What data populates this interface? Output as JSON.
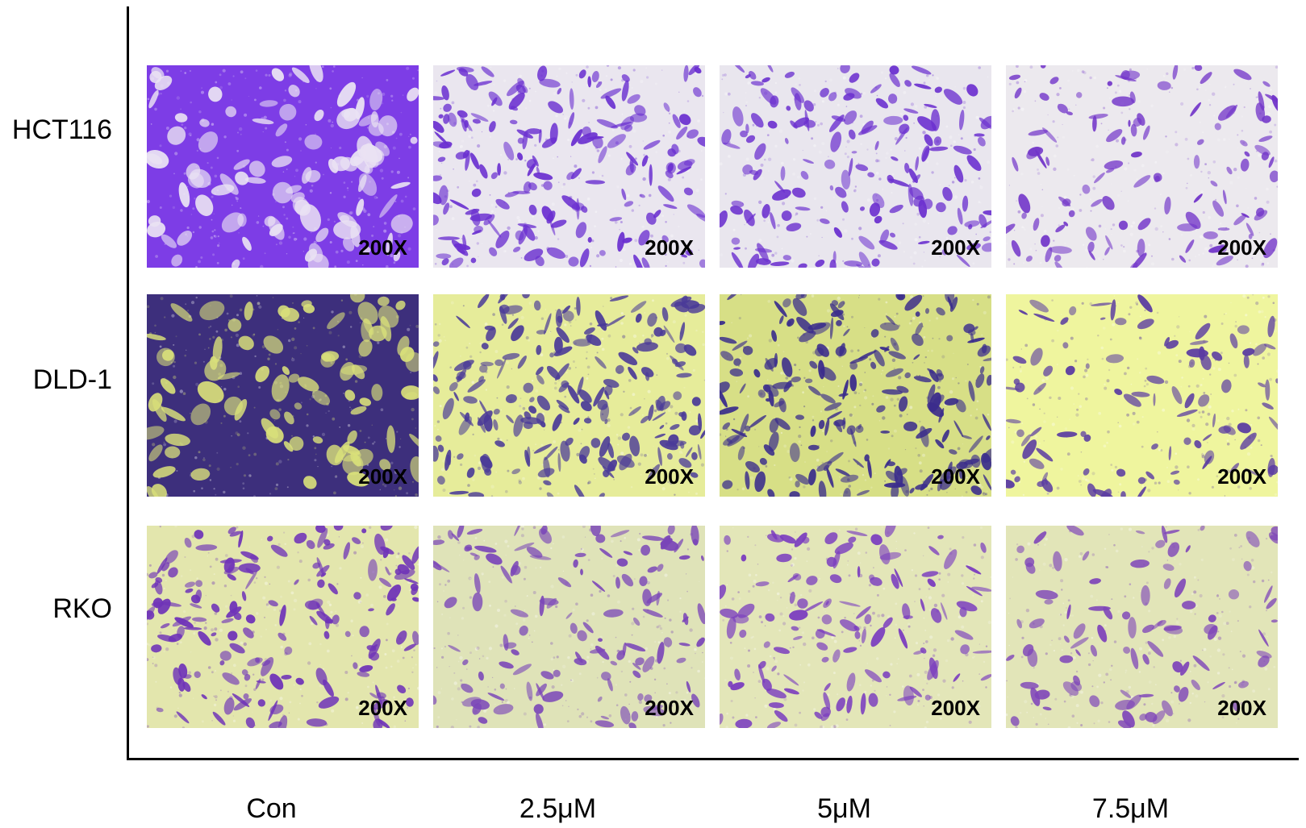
{
  "figure": {
    "rows": [
      {
        "label": "HCT116"
      },
      {
        "label": "DLD-1"
      },
      {
        "label": "RKO"
      }
    ],
    "columns": [
      {
        "label": "Con"
      },
      {
        "label": "2.5μM"
      },
      {
        "label": "5μM"
      },
      {
        "label": "7.5μM"
      }
    ],
    "magnification": "200X",
    "panel_styles": [
      {
        "background": "#7d3de6",
        "cell_color": "#eae2f3",
        "cell_role": "gaps",
        "density": 0.22
      },
      {
        "background": "#eae6ef",
        "cell_color": "#6a2fd0",
        "cell_role": "cells",
        "density": 0.55
      },
      {
        "background": "#e9e6ee",
        "cell_color": "#6c31cf",
        "cell_role": "cells",
        "density": 0.45
      },
      {
        "background": "#ece9ee",
        "cell_color": "#7235c9",
        "cell_role": "cells",
        "density": 0.28
      },
      {
        "background": "#3d2f7c",
        "cell_color": "#d9e07a",
        "cell_role": "gaps",
        "density": 0.18
      },
      {
        "background": "#e6ec9a",
        "cell_color": "#4a3a98",
        "cell_role": "cells",
        "density": 0.6
      },
      {
        "background": "#d7df86",
        "cell_color": "#3a2c8c",
        "cell_role": "cells",
        "density": 0.62
      },
      {
        "background": "#eff59e",
        "cell_color": "#5a3ba2",
        "cell_role": "cells",
        "density": 0.22
      },
      {
        "background": "#e3e6ad",
        "cell_color": "#6f33b8",
        "cell_role": "cells",
        "density": 0.5
      },
      {
        "background": "#dfe3b8",
        "cell_color": "#7a45b8",
        "cell_role": "cells",
        "density": 0.34
      },
      {
        "background": "#e3e6b8",
        "cell_color": "#7a3cbf",
        "cell_role": "cells",
        "density": 0.3
      },
      {
        "background": "#e2e5b8",
        "cell_color": "#7f46b9",
        "cell_role": "cells",
        "density": 0.2
      }
    ]
  }
}
